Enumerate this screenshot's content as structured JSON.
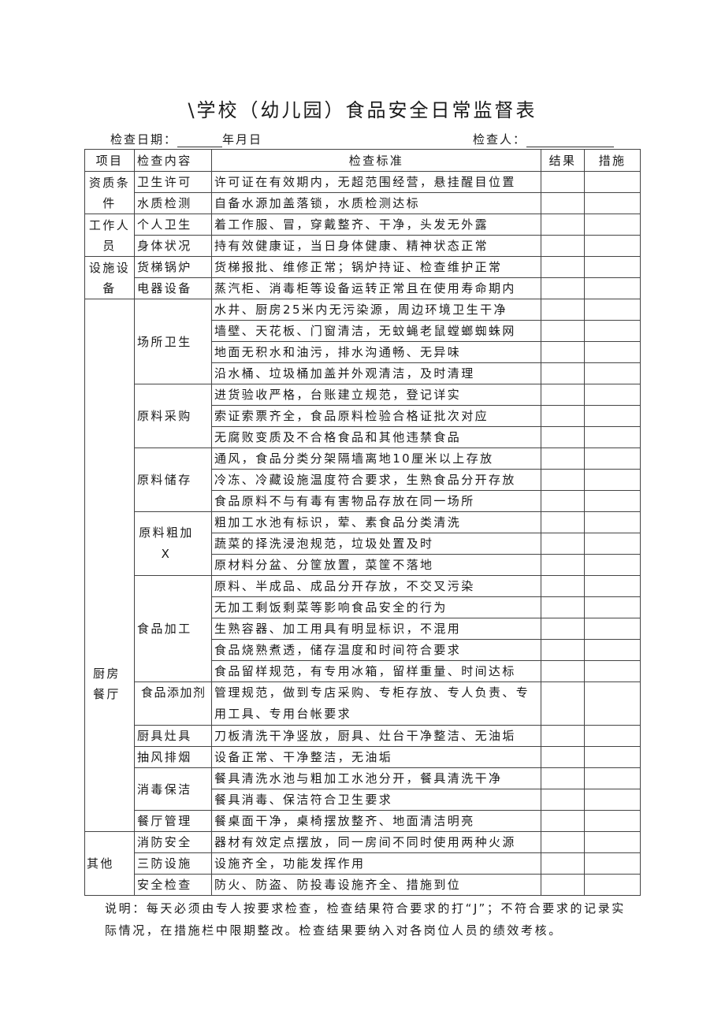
{
  "title": "\\学校（幼儿园）食品安全日常监督表",
  "meta": {
    "date_label": "检查日期：",
    "date_suffix": "年月日",
    "inspector_label": "检查人："
  },
  "table": {
    "headers": [
      "项目",
      "检查内容",
      "检查标准",
      "结果",
      "措施"
    ],
    "sections": [
      {
        "item": "资质条件",
        "groups": [
          {
            "content": "卫生许可",
            "standards": [
              "许可证在有效期内，无超范围经营，悬挂醒目位置"
            ]
          },
          {
            "content": "水质检测",
            "standards": [
              "自备水源加盖落锁，水质检测达标"
            ]
          }
        ]
      },
      {
        "item": "工作人员",
        "groups": [
          {
            "content": "个人卫生",
            "standards": [
              "着工作服、冒，穿戴整齐、干净，头发无外露"
            ]
          },
          {
            "content": "身体状况",
            "standards": [
              "持有效健康证，当日身体健康、精神状态正常"
            ]
          }
        ]
      },
      {
        "item": "设施设备",
        "groups": [
          {
            "content": "货梯锅炉",
            "standards": [
              "货梯报批、维修正常；锅炉持证、检查维护正常"
            ]
          },
          {
            "content": "电器设备",
            "standards": [
              "蒸汽柜、消毒柜等设备运转正常且在使用寿命期内"
            ]
          }
        ]
      },
      {
        "item": "厨房餐厅",
        "groups": [
          {
            "content": "场所卫生",
            "standards": [
              "水井、厨房25米内无污染源，周边环境卫生干净",
              "墙壁、天花板、门窗清洁，无蚊蝇老鼠螳螂蜘蛛网",
              "地面无积水和油污，排水沟通畅、无异味",
              "沿水桶、垃圾桶加盖并外观清洁，及时清理"
            ]
          },
          {
            "content": "原料采购",
            "standards": [
              "进货验收严格，台账建立规范，登记详实",
              "索证索票齐全，食品原料检验合格证批次对应",
              "无腐败变质及不合格食品和其他违禁食品"
            ]
          },
          {
            "content": "原料储存",
            "standards": [
              "通风，食品分类分架隔墙离地10厘米以上存放",
              "冷冻、冷藏设施温度符合要求，生熟食品分开存放",
              "食品原料不与有毒有害物品存放在同一场所"
            ]
          },
          {
            "content": "原料粗加X",
            "standards": [
              "粗加工水池有标识，荤、素食品分类清洗",
              "蔬菜的择洗浸泡规范，垃圾处置及时",
              "原材料分盆、分筐放置，菜筐不落地"
            ]
          },
          {
            "content": "食品加工",
            "standards": [
              "原料、半成品、成品分开存放，不交叉污染",
              "无加工剩饭剩菜等影响食品安全的行为",
              "生熟容器、加工用具有明显标识，不混用",
              "食品烧熟煮透，储存温度和时间符合要求",
              "食品留样规范，有专用冰箱，留样重量、时间达标"
            ]
          },
          {
            "content": "食品添加剂",
            "standards": [
              "管理规范，做到专店采购、专柜存放、专人负责、专用工具、专用台帐要求"
            ]
          },
          {
            "content": "厨具灶具",
            "standards": [
              "刀板清洗干净竖放，厨具、灶台干净整洁、无油垢"
            ]
          },
          {
            "content": "抽风排烟",
            "standards": [
              "设备正常、干净整洁，无油垢"
            ]
          },
          {
            "content": "消毒保洁",
            "standards": [
              "餐具清洗水池与粗加工水池分开，餐具清洗干净",
              "餐具消毒、保洁符合卫生要求"
            ]
          },
          {
            "content": "餐厅管理",
            "standards": [
              "餐桌面干净，桌椅摆放整齐、地面清洁明亮"
            ]
          }
        ]
      },
      {
        "item": "其他",
        "groups": [
          {
            "content": "消防安全",
            "standards": [
              "器材有效定点摆放，同一房间不同时使用两种火源"
            ]
          },
          {
            "content": "三防设施",
            "standards": [
              "设施齐全，功能发挥作用"
            ]
          },
          {
            "content": "安全检查",
            "standards": [
              "防火、防盗、防投毒设施齐全、措施到位"
            ]
          }
        ]
      }
    ]
  },
  "note": "说明：每天必须由专人按要求检查，检查结果符合要求的打“J”；不符合要求的记录实际情况，在措施栏中限期整改。检查结果要纳入对各岗位人员的绩效考核。"
}
